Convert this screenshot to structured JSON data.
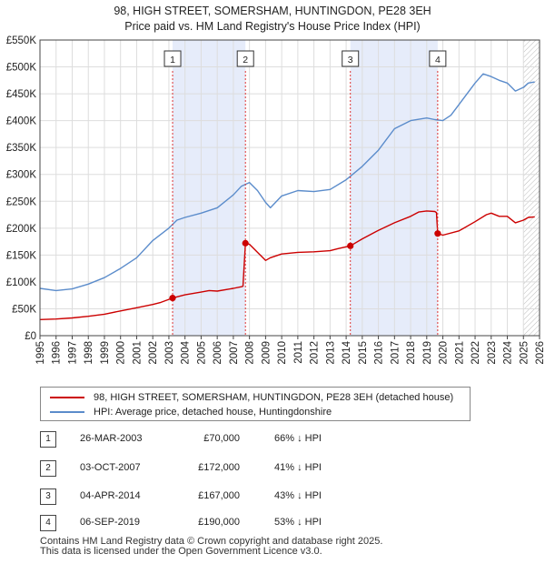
{
  "title": {
    "line1": "98, HIGH STREET, SOMERSHAM, HUNTINGDON, PE28 3EH",
    "line2": "Price paid vs. HM Land Registry's House Price Index (HPI)"
  },
  "chart_data": {
    "type": "line",
    "title": "98, HIGH STREET, SOMERSHAM, HUNTINGDON, PE28 3EH",
    "subtitle": "Price paid vs. HM Land Registry's House Price Index (HPI)",
    "xlabel": "",
    "ylabel": "",
    "xlim": [
      1995,
      2026
    ],
    "ylim": [
      0,
      550000
    ],
    "grid": true,
    "y_ticks": [
      0,
      50000,
      100000,
      150000,
      200000,
      250000,
      300000,
      350000,
      400000,
      450000,
      500000,
      550000
    ],
    "y_tick_labels": [
      "£0",
      "£50K",
      "£100K",
      "£150K",
      "£200K",
      "£250K",
      "£300K",
      "£350K",
      "£400K",
      "£450K",
      "£500K",
      "£550K"
    ],
    "x_ticks": [
      1995,
      1996,
      1997,
      1998,
      1999,
      2000,
      2001,
      2002,
      2003,
      2004,
      2005,
      2006,
      2007,
      2008,
      2009,
      2010,
      2011,
      2012,
      2013,
      2014,
      2015,
      2016,
      2017,
      2018,
      2019,
      2020,
      2021,
      2022,
      2023,
      2024,
      2025,
      2026
    ],
    "x_tick_labels": [
      "1995",
      "1996",
      "1997",
      "1998",
      "1999",
      "2000",
      "2001",
      "2002",
      "2003",
      "2004",
      "2005",
      "2006",
      "2007",
      "2008",
      "2009",
      "2010",
      "2011",
      "2012",
      "2013",
      "2014",
      "2015",
      "2016",
      "2017",
      "2018",
      "2019",
      "2020",
      "2021",
      "2022",
      "2023",
      "2024",
      "2025",
      "2026"
    ],
    "shaded_ranges": [
      [
        2003.23,
        2007.75
      ],
      [
        2014.26,
        2019.68
      ]
    ],
    "future_hatch_from": 2025.0,
    "series": [
      {
        "name": "98, HIGH STREET, SOMERSHAM, HUNTINGDON, PE28 3EH (detached house)",
        "color": "#cc0000",
        "x": [
          1995.0,
          1996.0,
          1997.0,
          1998.0,
          1999.0,
          2000.0,
          2001.0,
          2002.0,
          2002.5,
          2003.23,
          2004.0,
          2005.0,
          2005.5,
          2006.0,
          2007.0,
          2007.5,
          2007.6,
          2007.75,
          2008.0,
          2008.5,
          2009.0,
          2009.3,
          2010.0,
          2011.0,
          2012.0,
          2013.0,
          2013.5,
          2014.26,
          2015.0,
          2016.0,
          2017.0,
          2018.0,
          2018.5,
          2019.0,
          2019.5,
          2019.6,
          2019.68,
          2020.0,
          2021.0,
          2022.0,
          2022.7,
          2023.0,
          2023.5,
          2024.0,
          2024.5,
          2025.0,
          2025.3,
          2025.7
        ],
        "y": [
          30000,
          31000,
          33000,
          36000,
          40000,
          46000,
          52000,
          58000,
          62000,
          70000,
          76000,
          81000,
          84000,
          83000,
          88000,
          91000,
          92000,
          172000,
          170000,
          155000,
          140000,
          145000,
          152000,
          155000,
          156000,
          158000,
          162000,
          167000,
          180000,
          196000,
          210000,
          222000,
          230000,
          232000,
          231000,
          229000,
          190000,
          187000,
          195000,
          212000,
          225000,
          228000,
          222000,
          222000,
          210000,
          215000,
          220000,
          221000
        ]
      },
      {
        "name": "HPI: Average price, detached house, Huntingdonshire",
        "color": "#5b8ccb",
        "x": [
          1995.0,
          1996.0,
          1997.0,
          1998.0,
          1999.0,
          2000.0,
          2001.0,
          2002.0,
          2003.0,
          2003.5,
          2004.0,
          2005.0,
          2006.0,
          2007.0,
          2007.5,
          2008.0,
          2008.5,
          2009.0,
          2009.3,
          2010.0,
          2011.0,
          2012.0,
          2013.0,
          2014.0,
          2015.0,
          2016.0,
          2017.0,
          2018.0,
          2019.0,
          2019.5,
          2020.0,
          2020.5,
          2021.0,
          2022.0,
          2022.5,
          2023.0,
          2023.5,
          2024.0,
          2024.5,
          2025.0,
          2025.3,
          2025.7
        ],
        "y": [
          88000,
          84000,
          87000,
          96000,
          108000,
          125000,
          145000,
          177000,
          200000,
          215000,
          220000,
          228000,
          238000,
          262000,
          278000,
          285000,
          270000,
          248000,
          238000,
          260000,
          270000,
          268000,
          272000,
          290000,
          315000,
          345000,
          385000,
          400000,
          405000,
          402000,
          400000,
          410000,
          430000,
          470000,
          487000,
          482000,
          475000,
          470000,
          455000,
          462000,
          470000,
          472000
        ]
      }
    ],
    "sales": [
      {
        "num": "1",
        "x": 2003.23,
        "y": 70000
      },
      {
        "num": "2",
        "x": 2007.75,
        "y": 172000
      },
      {
        "num": "3",
        "x": 2014.26,
        "y": 167000
      },
      {
        "num": "4",
        "x": 2019.68,
        "y": 190000
      }
    ]
  },
  "legend": {
    "price_paid": "98, HIGH STREET, SOMERSHAM, HUNTINGDON, PE28 3EH (detached house)",
    "hpi": "HPI: Average price, detached house, Huntingdonshire",
    "price_color": "#cc0000",
    "hpi_color": "#5b8ccb"
  },
  "sales_table": [
    {
      "num": "1",
      "date": "26-MAR-2003",
      "price": "£70,000",
      "hpi": "66% ↓ HPI"
    },
    {
      "num": "2",
      "date": "03-OCT-2007",
      "price": "£172,000",
      "hpi": "41% ↓ HPI"
    },
    {
      "num": "3",
      "date": "04-APR-2014",
      "price": "£167,000",
      "hpi": "43% ↓ HPI"
    },
    {
      "num": "4",
      "date": "06-SEP-2019",
      "price": "£190,000",
      "hpi": "53% ↓ HPI"
    }
  ],
  "footer": {
    "line1": "Contains HM Land Registry data © Crown copyright and database right 2025.",
    "line2": "This data is licensed under the Open Government Licence v3.0."
  }
}
